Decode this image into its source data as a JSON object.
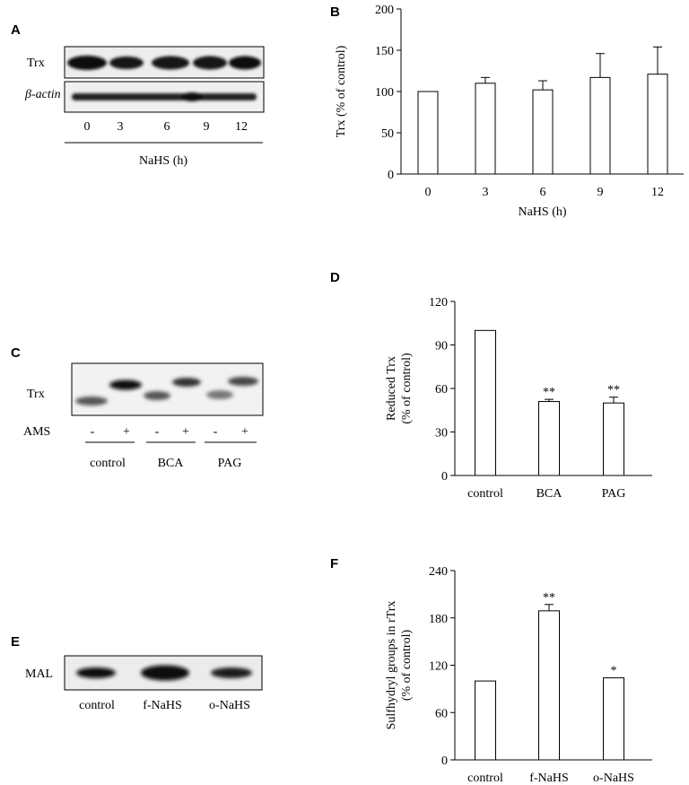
{
  "panels": {
    "A": {
      "letter": "A",
      "rows": [
        "Trx",
        "β-actin"
      ],
      "lanes": [
        "0",
        "3",
        "6",
        "9",
        "12"
      ],
      "xlabel": "NaHS (h)"
    },
    "C": {
      "letter": "C",
      "row": "Trx",
      "ams_label": "AMS",
      "ams_signs": [
        "-",
        "+",
        "-",
        "+",
        "-",
        "+"
      ],
      "groups": [
        "control",
        "BCA",
        "PAG"
      ]
    },
    "E": {
      "letter": "E",
      "row": "MAL",
      "lanes": [
        "control",
        "f-NaHS",
        "o-NaHS"
      ]
    }
  },
  "chart_data": [
    {
      "id": "B",
      "letter": "B",
      "type": "bar",
      "categories": [
        "0",
        "3",
        "6",
        "9",
        "12"
      ],
      "values": [
        100,
        110,
        102,
        117,
        121
      ],
      "errors": [
        0,
        7,
        11,
        29,
        33
      ],
      "significance": [
        "",
        "",
        "",
        "",
        ""
      ],
      "xlabel": "NaHS (h)",
      "ylabel": "Trx (% of control)",
      "ylim": [
        0,
        200
      ],
      "yticks": [
        0,
        50,
        100,
        150,
        200
      ],
      "grid": false
    },
    {
      "id": "D",
      "letter": "D",
      "type": "bar",
      "categories": [
        "control",
        "BCA",
        "PAG"
      ],
      "values": [
        100,
        51,
        50
      ],
      "errors": [
        0,
        1.5,
        4
      ],
      "significance": [
        "",
        "**",
        "**"
      ],
      "xlabel": "",
      "ylabel": [
        "Reduced Trx",
        "(% of control)"
      ],
      "ylim": [
        0,
        120
      ],
      "yticks": [
        0,
        30,
        60,
        90,
        120
      ],
      "grid": false
    },
    {
      "id": "F",
      "letter": "F",
      "type": "bar",
      "categories": [
        "control",
        "f-NaHS",
        "o-NaHS"
      ],
      "values": [
        100,
        189,
        104
      ],
      "errors": [
        0,
        8,
        0
      ],
      "significance": [
        "",
        "**",
        "*"
      ],
      "xlabel": "",
      "ylabel": [
        "Sulfhydryl groups in rTrx",
        "(% of control)"
      ],
      "ylim": [
        0,
        240
      ],
      "yticks": [
        0,
        60,
        120,
        180,
        240
      ],
      "grid": false
    }
  ]
}
